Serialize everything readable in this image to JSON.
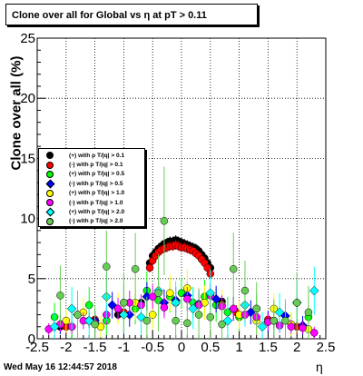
{
  "title": "Clone  over all for Global vs   η at pT > 0.11",
  "ylabel": "Clone  over all (%)",
  "xlabel": "η",
  "footer": "Wed May 16 12:44:57 2018",
  "chart_data": {
    "type": "scatter",
    "xlim": [
      -2.5,
      2.5
    ],
    "ylim": [
      0,
      25
    ],
    "grid": true,
    "legend_placement": "left",
    "x_ticks": [
      "-2.5",
      "-2",
      "-1.5",
      "-1",
      "-0.5",
      "0",
      "0.5",
      "1",
      "1.5",
      "2",
      "2.5"
    ],
    "y_ticks": [
      "0",
      "5",
      "10",
      "15",
      "20",
      "25"
    ],
    "series": [
      {
        "name": "(+) with p T/|q| > 0.1",
        "color": "#000000",
        "marker": "circle",
        "x": [
          -0.55,
          -0.5,
          -0.45,
          -0.4,
          -0.35,
          -0.3,
          -0.25,
          -0.2,
          -0.15,
          -0.1,
          -0.05,
          0.0,
          0.05,
          0.1,
          0.15,
          0.2,
          0.25,
          0.3,
          0.35,
          0.4,
          0.45,
          0.5,
          -2.1,
          -1.6,
          -1.1,
          -0.7,
          0.7,
          1.1,
          1.6,
          2.1
        ],
        "y": [
          6.3,
          6.9,
          7.2,
          7.5,
          7.7,
          7.9,
          8.0,
          8.1,
          8.1,
          8.2,
          8.1,
          8.0,
          7.9,
          7.8,
          7.7,
          7.6,
          7.5,
          7.3,
          7.0,
          6.7,
          6.3,
          5.9,
          1.0,
          1.5,
          2.0,
          3.0,
          3.1,
          2.0,
          1.5,
          1.0
        ],
        "yerr": [
          0.4,
          0.4,
          0.4,
          0.4,
          0.4,
          0.4,
          0.4,
          0.4,
          0.4,
          0.4,
          0.4,
          0.4,
          0.4,
          0.4,
          0.4,
          0.4,
          0.4,
          0.4,
          0.4,
          0.4,
          0.4,
          0.4,
          0.6,
          0.6,
          0.6,
          0.6,
          0.6,
          0.6,
          0.6,
          0.6
        ]
      },
      {
        "name": "(-) with p T/|q| > 0.1",
        "color": "#ff0000",
        "marker": "circle",
        "x": [
          -0.55,
          -0.5,
          -0.45,
          -0.4,
          -0.35,
          -0.3,
          -0.25,
          -0.2,
          -0.15,
          -0.1,
          -0.05,
          0.0,
          0.05,
          0.1,
          0.15,
          0.2,
          0.25,
          0.3,
          0.35,
          0.4,
          0.45,
          0.5,
          -2.0,
          -1.5,
          -1.0,
          0.95,
          1.5,
          2.0
        ],
        "y": [
          5.9,
          6.5,
          6.9,
          7.2,
          7.4,
          7.5,
          7.6,
          7.7,
          7.7,
          7.8,
          7.7,
          7.6,
          7.6,
          7.5,
          7.4,
          7.3,
          7.1,
          6.9,
          6.6,
          6.3,
          5.9,
          5.4,
          1.0,
          1.6,
          2.2,
          2.2,
          1.6,
          1.0
        ],
        "yerr": [
          0.4,
          0.4,
          0.4,
          0.4,
          0.4,
          0.4,
          0.4,
          0.4,
          0.4,
          0.4,
          0.4,
          0.4,
          0.4,
          0.4,
          0.4,
          0.4,
          0.4,
          0.4,
          0.4,
          0.4,
          0.4,
          0.4,
          0.6,
          0.6,
          0.6,
          0.6,
          0.6,
          0.6
        ]
      },
      {
        "name": "(+) with p T/|q| > 0.5",
        "color": "#00ff00",
        "marker": "circle",
        "x": [
          -2.2,
          -1.9,
          -1.6,
          -1.3,
          -1.0,
          -0.8,
          -0.6,
          -0.4,
          -0.2,
          0.0,
          0.2,
          0.4,
          0.6,
          0.8,
          1.0,
          1.3,
          1.6,
          1.9,
          2.2
        ],
        "y": [
          1.8,
          1.0,
          2.8,
          1.5,
          3.0,
          2.5,
          4.0,
          3.2,
          3.5,
          3.8,
          3.0,
          3.5,
          2.8,
          2.2,
          1.8,
          2.5,
          1.5,
          1.2,
          1.8
        ],
        "yerr": [
          1.2,
          1.0,
          1.5,
          1.2,
          1.5,
          1.3,
          1.6,
          1.4,
          1.3,
          1.3,
          1.3,
          1.4,
          1.4,
          1.3,
          1.2,
          1.3,
          1.2,
          1.0,
          1.2
        ]
      },
      {
        "name": "(-) with p T/|q| > 0.5",
        "color": "#0000ff",
        "marker": "diamond",
        "x": [
          -2.1,
          -1.8,
          -1.5,
          -1.2,
          -0.9,
          -0.6,
          -0.3,
          -0.1,
          0.1,
          0.3,
          0.6,
          0.9,
          1.2,
          1.5,
          1.8,
          2.1
        ],
        "y": [
          1.2,
          2.0,
          1.5,
          2.8,
          2.0,
          3.5,
          3.0,
          3.2,
          3.6,
          2.9,
          3.3,
          2.5,
          2.2,
          1.4,
          1.9,
          1.1
        ],
        "yerr": [
          0.8,
          1.0,
          0.9,
          1.1,
          1.0,
          1.2,
          1.1,
          1.1,
          1.2,
          1.1,
          1.1,
          1.0,
          1.0,
          0.9,
          1.0,
          0.8
        ]
      },
      {
        "name": "(+) with p T/|q| > 1.0",
        "color": "#ffff00",
        "marker": "circle",
        "x": [
          -2.0,
          -1.7,
          -1.4,
          -1.1,
          -0.8,
          -0.5,
          -0.2,
          0.1,
          0.4,
          0.7,
          1.0,
          1.3,
          1.6,
          1.9,
          2.2
        ],
        "y": [
          1.5,
          2.2,
          1.0,
          2.5,
          3.0,
          2.0,
          3.8,
          4.2,
          3.0,
          2.8,
          2.0,
          1.5,
          2.5,
          1.2,
          0.8
        ],
        "yerr": [
          1.0,
          1.2,
          0.9,
          1.3,
          1.4,
          1.2,
          1.5,
          1.6,
          1.4,
          1.3,
          1.2,
          1.0,
          1.3,
          1.0,
          0.8
        ]
      },
      {
        "name": "(-) with p T/|q| > 1.0",
        "color": "#ff00ff",
        "marker": "circle",
        "x": [
          -2.3,
          -2.1,
          -1.9,
          -1.7,
          -1.5,
          -1.3,
          -1.1,
          -0.9,
          -0.7,
          -0.5,
          -0.3,
          -0.1,
          0.1,
          0.3,
          0.5,
          0.7,
          0.9,
          1.1,
          1.3,
          1.5,
          1.7,
          1.9,
          2.1,
          2.3
        ],
        "y": [
          0.8,
          1.2,
          1.0,
          1.5,
          1.3,
          2.0,
          2.5,
          3.0,
          2.8,
          3.5,
          2.6,
          3.0,
          3.3,
          2.8,
          3.6,
          2.7,
          2.5,
          2.0,
          1.8,
          1.4,
          1.1,
          1.0,
          0.9,
          0.5
        ],
        "yerr": [
          0.5,
          0.6,
          0.6,
          0.7,
          0.7,
          0.8,
          0.9,
          1.0,
          0.9,
          1.0,
          0.9,
          1.0,
          1.0,
          0.9,
          1.0,
          0.9,
          0.9,
          0.8,
          0.8,
          0.7,
          0.6,
          0.6,
          0.5,
          0.5
        ]
      },
      {
        "name": "(+) with p T/|q| > 2.0",
        "color": "#00ffff",
        "marker": "diamond",
        "x": [
          -2.2,
          -1.9,
          -1.6,
          -1.3,
          -1.0,
          -0.7,
          -0.4,
          -0.1,
          0.2,
          0.5,
          0.8,
          1.1,
          1.4,
          1.7,
          2.0,
          2.3
        ],
        "y": [
          1.0,
          2.5,
          1.5,
          3.5,
          2.0,
          1.8,
          4.0,
          3.0,
          2.5,
          3.8,
          1.5,
          2.8,
          1.0,
          2.2,
          3.0,
          4.0
        ],
        "yerr": [
          1.2,
          1.8,
          1.5,
          2.0,
          1.6,
          1.5,
          2.2,
          1.8,
          1.7,
          2.0,
          1.5,
          1.8,
          1.2,
          1.6,
          1.8,
          2.0
        ]
      },
      {
        "name": "(-) with p T/|q| > 2.0",
        "color": "#66cc55",
        "marker": "circle",
        "x": [
          -2.1,
          -1.8,
          -1.5,
          -1.3,
          -1.0,
          -0.8,
          -0.6,
          -0.4,
          -0.3,
          -0.1,
          0.1,
          0.3,
          0.5,
          0.7,
          0.9,
          1.1,
          1.3,
          1.6,
          1.8,
          2.0,
          2.2
        ],
        "y": [
          3.6,
          2.0,
          1.2,
          6.0,
          3.0,
          5.8,
          1.5,
          3.8,
          9.8,
          1.5,
          1.3,
          2.0,
          1.8,
          1.2,
          5.8,
          4.0,
          2.5,
          1.5,
          1.5,
          3.0,
          2.2
        ],
        "yerr": [
          2.5,
          2.0,
          1.5,
          3.0,
          2.5,
          3.0,
          2.0,
          3.2,
          4.5,
          2.0,
          1.8,
          2.2,
          2.0,
          1.8,
          3.0,
          2.5,
          2.2,
          1.8,
          1.8,
          2.5,
          2.2
        ]
      }
    ]
  }
}
